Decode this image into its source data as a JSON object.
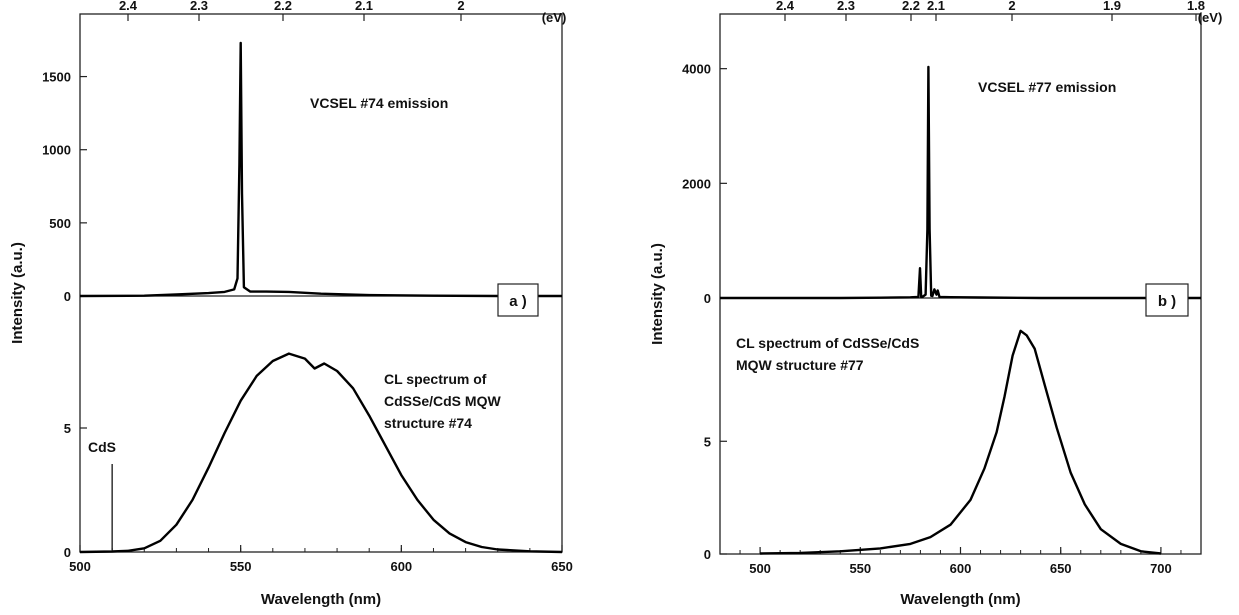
{
  "chart_data": [
    {
      "panel": "a",
      "type": "line",
      "panel_label": "a )",
      "xlabel": "Wavelength (nm)",
      "ylabel": "Intensity (a.u.)",
      "top_axis_unit": "(eV)",
      "xlim": [
        500,
        650
      ],
      "x_ticks": [
        "500",
        "550",
        "600",
        "650"
      ],
      "top_ticks_ev": [
        "2.4",
        "2.3",
        "2.2",
        "2.1",
        "2"
      ],
      "upper": {
        "ylim": [
          0,
          1750
        ],
        "y_ticks": [
          "0",
          "500",
          "1000",
          "1500"
        ],
        "annotation": "VCSEL #74 emission",
        "series": [
          {
            "x": [
              500,
              520,
              530,
              540,
              545,
              548,
              549,
              549.6,
              550,
              550.4,
              551,
              553,
              558,
              565,
              575,
              590,
              610,
              630,
              650
            ],
            "y": [
              0,
              2,
              10,
              20,
              28,
              45,
              120,
              900,
              1730,
              700,
              60,
              30,
              30,
              28,
              16,
              6,
              2,
              0,
              0
            ]
          }
        ]
      },
      "lower": {
        "ylim": [
          0,
          10
        ],
        "y_ticks": [
          "0",
          "5"
        ],
        "annotation": [
          "CL spectrum of",
          "CdSSe/CdS MQW",
          "structure #74"
        ],
        "marker_label": "CdS",
        "marker_x": 510,
        "series": [
          {
            "x": [
              500,
              510,
              515,
              520,
              525,
              530,
              535,
              540,
              545,
              550,
              555,
              560,
              565,
              570,
              573,
              576,
              580,
              585,
              590,
              595,
              600,
              605,
              610,
              615,
              620,
              625,
              630,
              640,
              650
            ],
            "y": [
              0,
              0.02,
              0.05,
              0.15,
              0.45,
              1.1,
              2.1,
              3.4,
              4.8,
              6.1,
              7.1,
              7.7,
              8.0,
              7.8,
              7.4,
              7.6,
              7.3,
              6.6,
              5.5,
              4.3,
              3.1,
              2.1,
              1.3,
              0.75,
              0.4,
              0.2,
              0.1,
              0.03,
              0
            ]
          }
        ]
      }
    },
    {
      "panel": "b",
      "type": "line",
      "panel_label": "b )",
      "xlabel": "Wavelength (nm)",
      "ylabel": "Intensity (a.u.)",
      "top_axis_unit": "(eV)",
      "xlim": [
        480,
        720
      ],
      "x_ticks": [
        "500",
        "550",
        "600",
        "650",
        "700"
      ],
      "top_ticks_ev": [
        "2.4",
        "2.3",
        "2.2",
        "2.1",
        "2",
        "1.9",
        "1.8"
      ],
      "upper": {
        "ylim": [
          0,
          4500
        ],
        "y_ticks": [
          "0",
          "2000",
          "4000"
        ],
        "annotation": "VCSEL #77 emission",
        "series": [
          {
            "x": [
              480,
              540,
              560,
              575,
              579,
              579.8,
              580.4,
              581,
              582.6,
              583.5,
              584,
              584.6,
              585.4,
              586,
              587,
              588,
              588.6,
              589.5,
              595,
              610,
              640,
              720
            ],
            "y": [
              0,
              0,
              5,
              12,
              20,
              520,
              20,
              20,
              60,
              1200,
              4030,
              1200,
              40,
              35,
              150,
              60,
              130,
              20,
              14,
              8,
              0,
              0
            ]
          }
        ]
      },
      "lower": {
        "ylim": [
          0,
          11
        ],
        "y_ticks": [
          "0",
          "5"
        ],
        "annotation": [
          "CL spectrum of CdSSe/CdS",
          "MQW structure #77"
        ],
        "series": [
          {
            "x": [
              500,
              520,
              540,
              560,
              575,
              585,
              595,
              605,
              612,
              618,
              622,
              626,
              630,
              633,
              637,
              642,
              648,
              655,
              662,
              670,
              680,
              690,
              700
            ],
            "y": [
              0.02,
              0.05,
              0.12,
              0.25,
              0.45,
              0.75,
              1.3,
              2.4,
              3.8,
              5.4,
              7.0,
              8.8,
              9.9,
              9.7,
              9.1,
              7.5,
              5.6,
              3.6,
              2.2,
              1.1,
              0.45,
              0.12,
              0.02
            ]
          }
        ]
      }
    }
  ]
}
